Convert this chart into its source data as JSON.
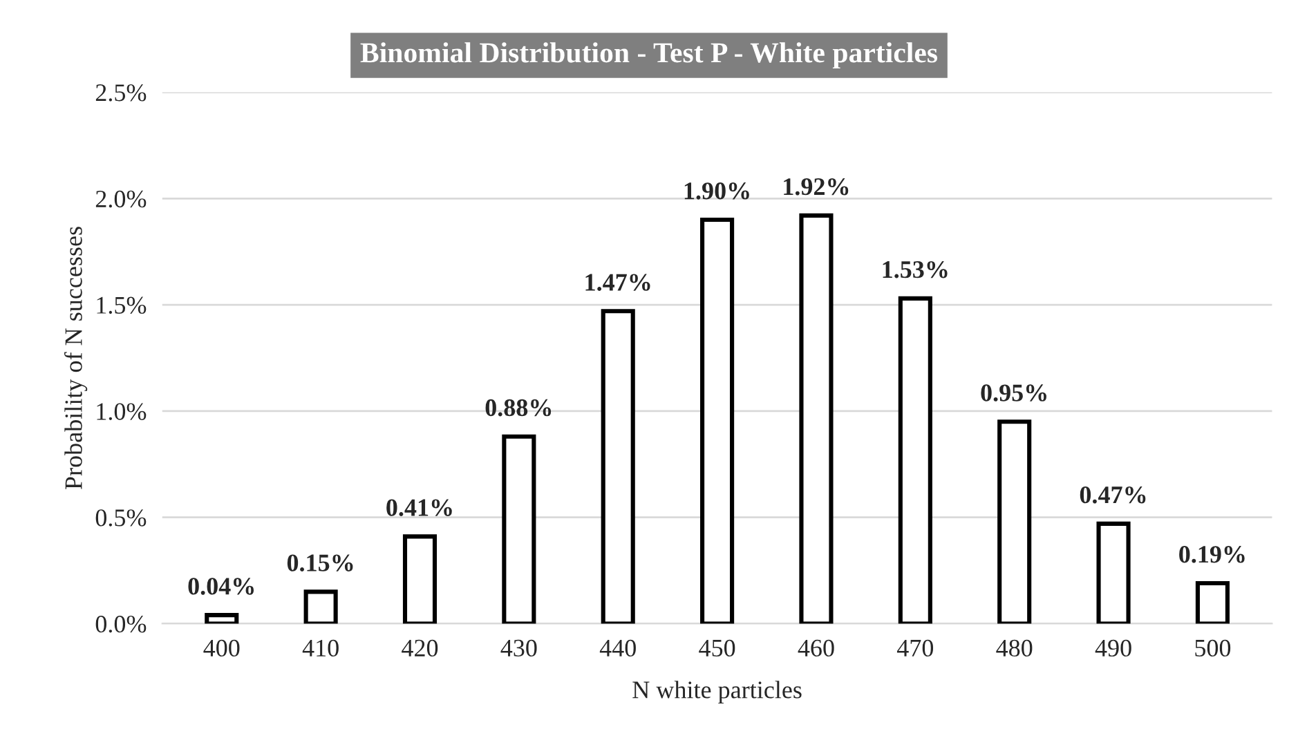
{
  "chart_data": {
    "type": "bar",
    "title": "Binomial Distribution - Test P - White particles",
    "xlabel": "N white particles",
    "ylabel": "Probability of N successes",
    "categories": [
      "400",
      "410",
      "420",
      "430",
      "440",
      "450",
      "460",
      "470",
      "480",
      "490",
      "500"
    ],
    "values": [
      0.04,
      0.15,
      0.41,
      0.88,
      1.47,
      1.9,
      1.92,
      1.53,
      0.95,
      0.47,
      0.19
    ],
    "value_labels": [
      "0.04%",
      "0.15%",
      "0.41%",
      "0.88%",
      "1.47%",
      "1.90%",
      "1.92%",
      "1.53%",
      "0.95%",
      "0.47%",
      "0.19%"
    ],
    "color": "#ffffff",
    "ylim": [
      0,
      2.5
    ],
    "yticks": [
      {
        "value": 0,
        "label": "0.0%"
      },
      {
        "value": 0.5,
        "label": "0.5%"
      },
      {
        "value": 1.0,
        "label": "1.0%"
      },
      {
        "value": 1.5,
        "label": "1.5%"
      },
      {
        "value": 2.0,
        "label": "2.0%"
      },
      {
        "value": 2.5,
        "label": "2.5%"
      }
    ],
    "grid": "y",
    "legend": false
  }
}
